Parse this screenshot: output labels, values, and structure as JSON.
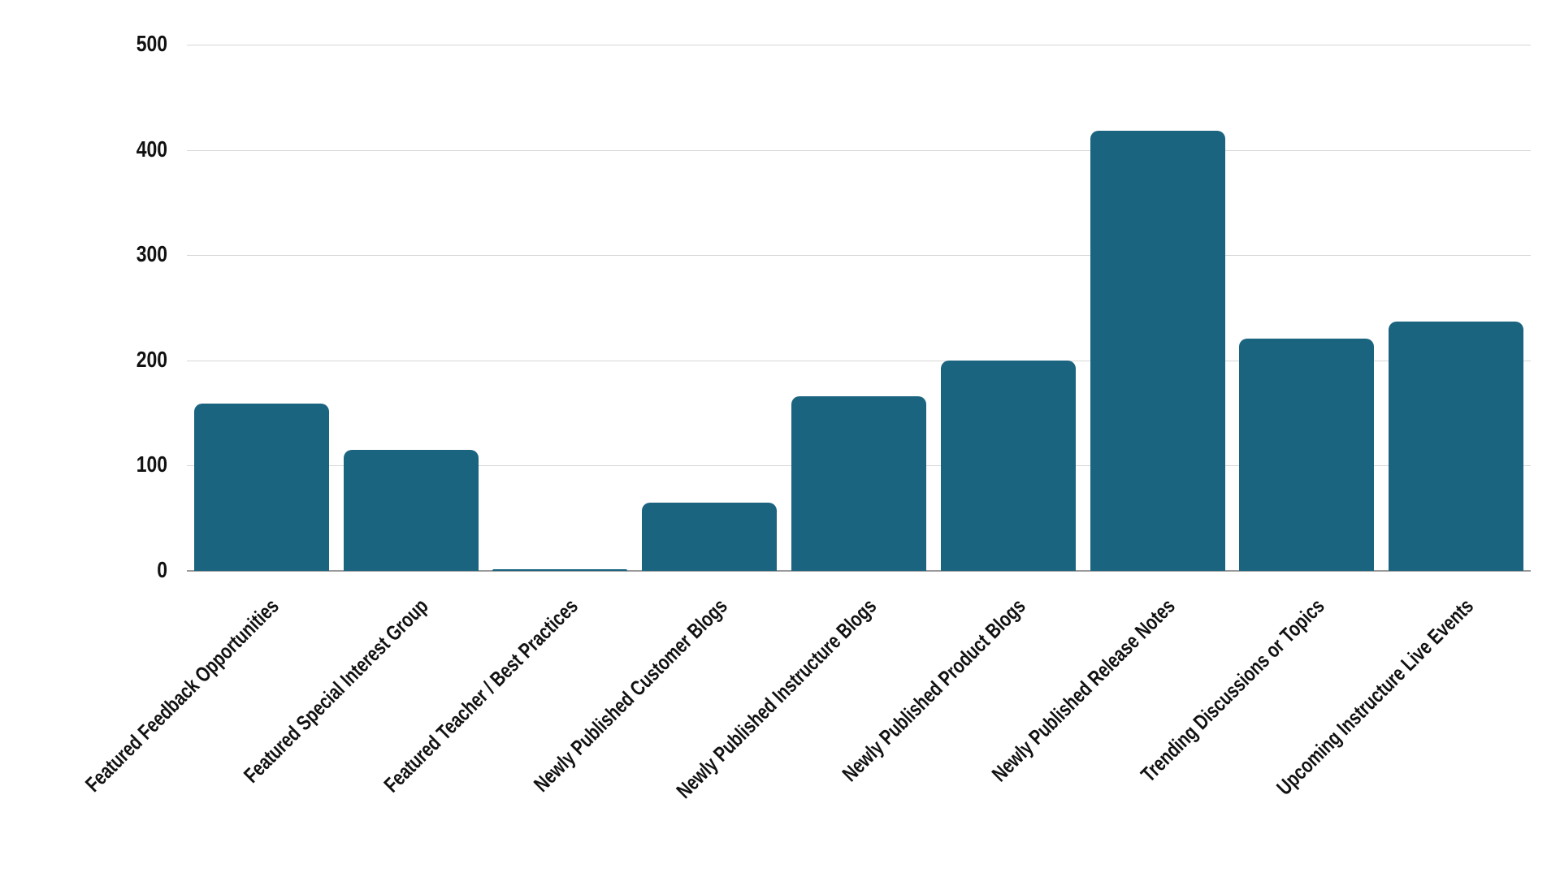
{
  "chart_data": {
    "type": "bar",
    "title": "",
    "xlabel": "",
    "ylabel": "",
    "ylim": [
      0,
      500
    ],
    "yticks": [
      0,
      100,
      200,
      300,
      400,
      500
    ],
    "grid": true,
    "legend": null,
    "bar_color": "#1a6480",
    "categories": [
      "Featured Feedback Opportunities",
      "Featured Special Interest Group",
      "Featured Teacher / Best Practices",
      "Newly Published Customer Blogs",
      "Newly Published Instructure Blogs",
      "Newly Published Product Blogs",
      "Newly Published Release Notes",
      "Trending Discussions or Topics",
      "Upcoming Instructure Live Events"
    ],
    "values": [
      159,
      115,
      1,
      65,
      166,
      200,
      418,
      221,
      237
    ]
  }
}
